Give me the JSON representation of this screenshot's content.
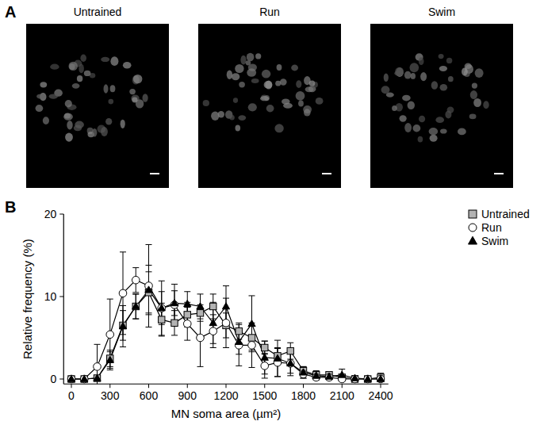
{
  "figure": {
    "panel_a": {
      "label": "A",
      "image_titles": [
        "Untrained",
        "Run",
        "Swim"
      ]
    },
    "panel_b": {
      "label": "B"
    }
  },
  "chart_data": {
    "type": "line",
    "x_label": "MN soma area (µm²)",
    "y_label": "Relative frequency (%)",
    "x": [
      0,
      100,
      200,
      300,
      400,
      500,
      600,
      700,
      800,
      900,
      1000,
      1100,
      1200,
      1300,
      1400,
      1500,
      1600,
      1700,
      1800,
      1900,
      2000,
      2100,
      2200,
      2300,
      2400
    ],
    "xlim": [
      -60,
      2460
    ],
    "xticks": [
      0,
      300,
      600,
      900,
      1200,
      1500,
      1800,
      2100,
      2400
    ],
    "ylim": [
      -0.6,
      20
    ],
    "yticks": [
      0,
      10,
      20
    ],
    "grid": false,
    "legend": "upper right",
    "series": [
      {
        "name": "Untrained",
        "color": "#b3b3b3",
        "marker": "square",
        "values": [
          0,
          0,
          0.1,
          2.5,
          6.5,
          8.8,
          10.5,
          7.2,
          6.8,
          7.8,
          8.0,
          8.8,
          6.5,
          5.8,
          5.0,
          3.8,
          2.8,
          3.4,
          1.0,
          0.5,
          0.5,
          0.2,
          0,
          0,
          0.2
        ],
        "errors": [
          0,
          0,
          0.3,
          1,
          1.8,
          1.5,
          2.5,
          2,
          1.5,
          1.5,
          1,
          1.5,
          1.5,
          1,
          1.5,
          0.8,
          1,
          1,
          0.5,
          0.5,
          0.3,
          0.3,
          0,
          0,
          0.5
        ]
      },
      {
        "name": "Run",
        "color": "#ffffff",
        "marker": "circle",
        "values": [
          0,
          0,
          1.5,
          5.4,
          10.4,
          12.0,
          11.3,
          8.6,
          9.0,
          6.7,
          5.0,
          5.8,
          6.8,
          4.1,
          4.1,
          1.6,
          2.0,
          1.9,
          0.6,
          0.2,
          0.2,
          0,
          0,
          0,
          0
        ],
        "errors": [
          0,
          0,
          2.7,
          4.3,
          5,
          1.5,
          5,
          3.3,
          2.5,
          2,
          3.5,
          2,
          3,
          2.5,
          2.7,
          1.5,
          1.7,
          1.2,
          0.5,
          0.3,
          0.3,
          0,
          0,
          0,
          0
        ]
      },
      {
        "name": "Swim",
        "color": "#000000",
        "marker": "triangle",
        "values": [
          0,
          0,
          0.1,
          2.3,
          6.4,
          8.8,
          10.8,
          8.6,
          9.2,
          9.1,
          8.8,
          6.8,
          8.8,
          4.5,
          6.7,
          2.6,
          2.5,
          1.9,
          0.8,
          0.4,
          0.3,
          0.5,
          0.1,
          0,
          0
        ],
        "errors": [
          0,
          0,
          0.3,
          1,
          2.5,
          1.5,
          3,
          2,
          1.5,
          1.5,
          1.5,
          2.5,
          2.5,
          1.5,
          3.4,
          2,
          2.2,
          1.5,
          0.7,
          0.5,
          0.3,
          0.7,
          0.3,
          0,
          0
        ]
      }
    ]
  }
}
